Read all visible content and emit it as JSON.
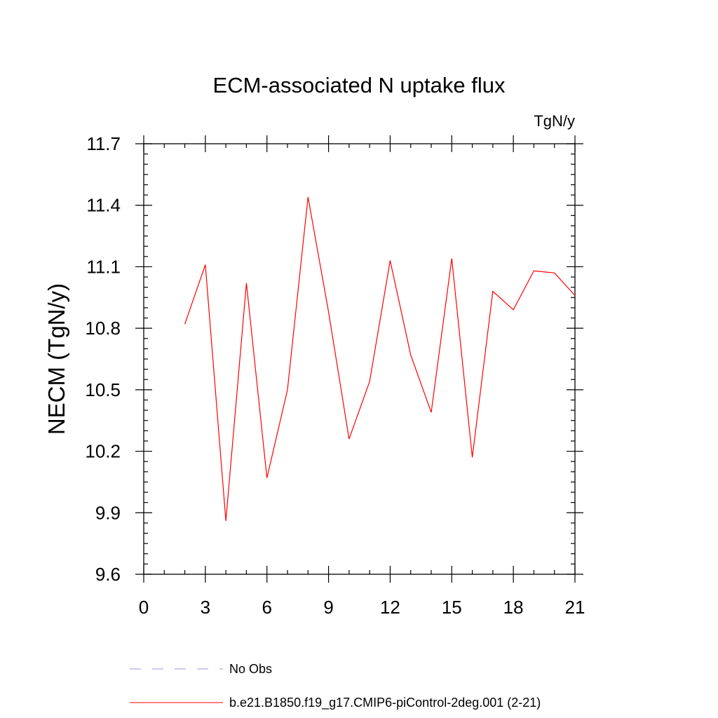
{
  "chart_data": {
    "type": "line",
    "title": "ECM-associated N uptake flux",
    "units_label": "TgN/y",
    "ylabel": "NECM  (TgN/y)",
    "xlabel": "",
    "xlim": [
      0,
      21
    ],
    "ylim": [
      9.6,
      11.7
    ],
    "x_ticks": [
      0,
      3,
      6,
      9,
      12,
      15,
      18,
      21
    ],
    "x_tick_labels": [
      "0",
      "3",
      "6",
      "9",
      "12",
      "15",
      "18",
      "21"
    ],
    "y_ticks": [
      9.6,
      9.9,
      10.2,
      10.5,
      10.8,
      11.1,
      11.4,
      11.7
    ],
    "y_tick_labels": [
      "9.6",
      "9.9",
      "10.2",
      "10.5",
      "10.8",
      "11.1",
      "11.4",
      "11.7"
    ],
    "x_minor_step": 1,
    "y_minor_step": 0.05,
    "grid": false,
    "series": [
      {
        "name": "b.e21.B1850.f19_g17.CMIP6-piControl-2deg.001 (2-21)",
        "color": "#ff0000",
        "style": "solid",
        "x": [
          2,
          3,
          4,
          5,
          6,
          7,
          8,
          9,
          10,
          11,
          12,
          13,
          14,
          15,
          16,
          17,
          18,
          19,
          20,
          21
        ],
        "values": [
          10.82,
          11.11,
          9.86,
          11.02,
          10.07,
          10.5,
          11.44,
          10.88,
          10.26,
          10.54,
          11.13,
          10.67,
          10.39,
          11.14,
          10.17,
          10.98,
          10.89,
          11.08,
          11.07,
          10.96
        ]
      }
    ],
    "legend": [
      {
        "label": "No Obs",
        "color": "#9999dd",
        "style": "dashed"
      },
      {
        "label": "b.e21.B1850.f19_g17.CMIP6-piControl-2deg.001 (2-21)",
        "color": "#ff0000",
        "style": "solid"
      }
    ],
    "legend_position": "bottom"
  }
}
